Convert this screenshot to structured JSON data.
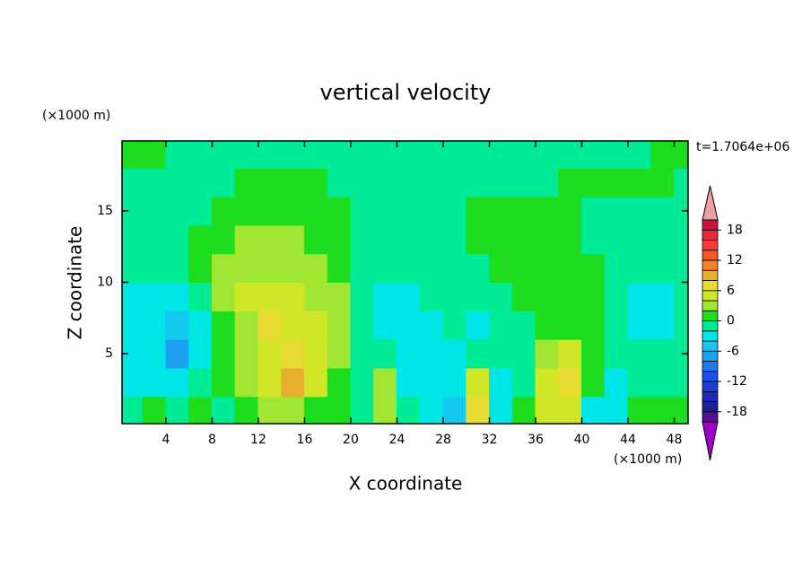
{
  "chart_data": {
    "type": "contour",
    "title": "vertical velocity",
    "x_label": "X coordinate",
    "y_label": "Z coordinate",
    "x_unit": "(×1000 m)",
    "y_unit": "(×1000 m)",
    "annotation": "t=1.7064e+06",
    "xlim": [
      0.2,
      49.2
    ],
    "ylim": [
      0.1,
      19.9
    ],
    "xticks": [
      4,
      8,
      12,
      16,
      20,
      24,
      28,
      32,
      36,
      40,
      44,
      48
    ],
    "yticks": [
      5,
      10,
      15
    ],
    "x": [
      1,
      3,
      5,
      7,
      9,
      11,
      13,
      15,
      17,
      19,
      21,
      23,
      25,
      27,
      29,
      31,
      33,
      35,
      37,
      39,
      41,
      43,
      45,
      47,
      49
    ],
    "y": [
      1,
      3,
      5,
      7,
      9,
      11,
      13,
      15,
      17,
      19
    ],
    "z": [
      [
        -1,
        1,
        -1,
        1,
        -1,
        1,
        3,
        3,
        1,
        1,
        -1,
        3,
        -1,
        -3,
        -5,
        7,
        -3,
        1,
        5,
        5,
        -3,
        -3,
        1,
        1,
        1
      ],
      [
        -3,
        -3,
        -3,
        -1,
        1,
        3,
        5,
        9,
        5,
        1,
        -1,
        3,
        -3,
        -3,
        -3,
        5,
        -3,
        -1,
        5,
        7,
        1,
        -3,
        -1,
        -1,
        -1
      ],
      [
        -3,
        -3,
        -7,
        -3,
        1,
        3,
        5,
        7,
        5,
        3,
        -1,
        -1,
        -3,
        -3,
        -3,
        -1,
        -1,
        -1,
        3,
        5,
        1,
        -1,
        -1,
        -1,
        -1
      ],
      [
        -3,
        -3,
        -5,
        -3,
        1,
        3,
        7,
        5,
        5,
        3,
        -1,
        -3,
        -3,
        -3,
        -1,
        -3,
        -1,
        -1,
        1,
        1,
        1,
        -1,
        -3,
        -3,
        -1
      ],
      [
        -3,
        -3,
        -3,
        -1,
        3,
        5,
        5,
        5,
        3,
        3,
        -1,
        -3,
        -3,
        -1,
        -1,
        -1,
        -1,
        1,
        1,
        1,
        1,
        -1,
        -3,
        -3,
        -1
      ],
      [
        -1,
        -1,
        -1,
        1,
        3,
        3,
        3,
        3,
        3,
        1,
        -1,
        -1,
        -1,
        -1,
        -1,
        -1,
        1,
        1,
        1,
        1,
        1,
        -1,
        -1,
        -1,
        -1
      ],
      [
        -1,
        -1,
        -1,
        1,
        1,
        3,
        3,
        3,
        1,
        1,
        -1,
        -1,
        -1,
        -1,
        -1,
        1,
        1,
        1,
        1,
        1,
        -1,
        -1,
        -1,
        -1,
        -1
      ],
      [
        -1,
        -1,
        -1,
        -1,
        1,
        1,
        1,
        1,
        1,
        1,
        -1,
        -1,
        -1,
        -1,
        -1,
        1,
        1,
        1,
        1,
        1,
        -1,
        -1,
        -1,
        -1,
        -1
      ],
      [
        -1,
        -1,
        -1,
        -1,
        -1,
        1,
        1,
        1,
        1,
        -1,
        -1,
        -1,
        -1,
        -1,
        -1,
        -1,
        -1,
        -1,
        -1,
        1,
        1,
        1,
        1,
        1,
        -1
      ],
      [
        1,
        1,
        -1,
        -1,
        -1,
        -1,
        -1,
        -1,
        -1,
        -1,
        -1,
        -1,
        -1,
        -1,
        -1,
        -1,
        -1,
        -1,
        -1,
        -1,
        -1,
        -1,
        -1,
        1,
        1
      ]
    ],
    "levels": [
      -20,
      -18,
      -16,
      -14,
      -12,
      -10,
      -8,
      -6,
      -4,
      -2,
      0,
      2,
      4,
      6,
      8,
      10,
      12,
      14,
      16,
      18,
      20
    ],
    "colors": [
      "#50148c",
      "#1e1e96",
      "#1e28b4",
      "#1e3cd2",
      "#1e50eb",
      "#1e78f0",
      "#1ea0f0",
      "#14c8f0",
      "#00e6e6",
      "#00eb96",
      "#1edc1e",
      "#a0e632",
      "#d2e628",
      "#e6dc32",
      "#e6af2d",
      "#f08228",
      "#f05a28",
      "#fa3c3c",
      "#e6283c",
      "#c8143c"
    ],
    "over_color": "#f0a0a0",
    "under_color": "#a000c8",
    "cbar_ticks": [
      -18,
      -12,
      -6,
      0,
      6,
      12,
      18
    ]
  }
}
